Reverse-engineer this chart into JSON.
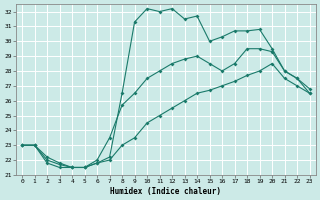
{
  "xlabel": "Humidex (Indice chaleur)",
  "bg_color": "#cceae7",
  "grid_color": "#ffffff",
  "line_color": "#1a7a6a",
  "xlim": [
    -0.5,
    23.5
  ],
  "ylim": [
    21,
    32.5
  ],
  "xticks": [
    0,
    1,
    2,
    3,
    4,
    5,
    6,
    7,
    8,
    9,
    10,
    11,
    12,
    13,
    14,
    15,
    16,
    17,
    18,
    19,
    20,
    21,
    22,
    23
  ],
  "yticks": [
    21,
    22,
    23,
    24,
    25,
    26,
    27,
    28,
    29,
    30,
    31,
    32
  ],
  "series1_x": [
    0,
    1,
    2,
    3,
    4,
    5,
    6,
    7,
    8,
    9,
    10,
    11,
    12,
    13,
    14,
    15,
    16,
    17,
    18,
    19,
    20,
    21,
    22,
    23
  ],
  "series1_y": [
    23.0,
    23.0,
    22.2,
    21.8,
    21.5,
    21.5,
    21.8,
    22.2,
    26.5,
    31.3,
    32.2,
    32.0,
    32.2,
    31.5,
    31.7,
    30.0,
    30.3,
    30.7,
    30.7,
    30.8,
    29.5,
    28.0,
    27.5,
    26.8
  ],
  "series2_x": [
    0,
    1,
    2,
    3,
    4,
    5,
    6,
    7,
    8,
    9,
    10,
    11,
    12,
    13,
    14,
    15,
    16,
    17,
    18,
    19,
    20,
    21,
    22,
    23
  ],
  "series2_y": [
    23.0,
    23.0,
    22.0,
    21.7,
    21.5,
    21.5,
    22.0,
    23.5,
    25.7,
    26.5,
    27.5,
    28.0,
    28.5,
    28.8,
    29.0,
    28.5,
    28.0,
    28.5,
    29.5,
    29.5,
    29.3,
    28.0,
    27.5,
    26.5
  ],
  "series3_x": [
    0,
    1,
    2,
    3,
    4,
    5,
    6,
    7,
    8,
    9,
    10,
    11,
    12,
    13,
    14,
    15,
    16,
    17,
    18,
    19,
    20,
    21,
    22,
    23
  ],
  "series3_y": [
    23.0,
    23.0,
    21.8,
    21.5,
    21.5,
    21.5,
    21.8,
    22.0,
    23.0,
    23.5,
    24.5,
    25.0,
    25.5,
    26.0,
    26.5,
    26.7,
    27.0,
    27.3,
    27.7,
    28.0,
    28.5,
    27.5,
    27.0,
    26.5
  ]
}
